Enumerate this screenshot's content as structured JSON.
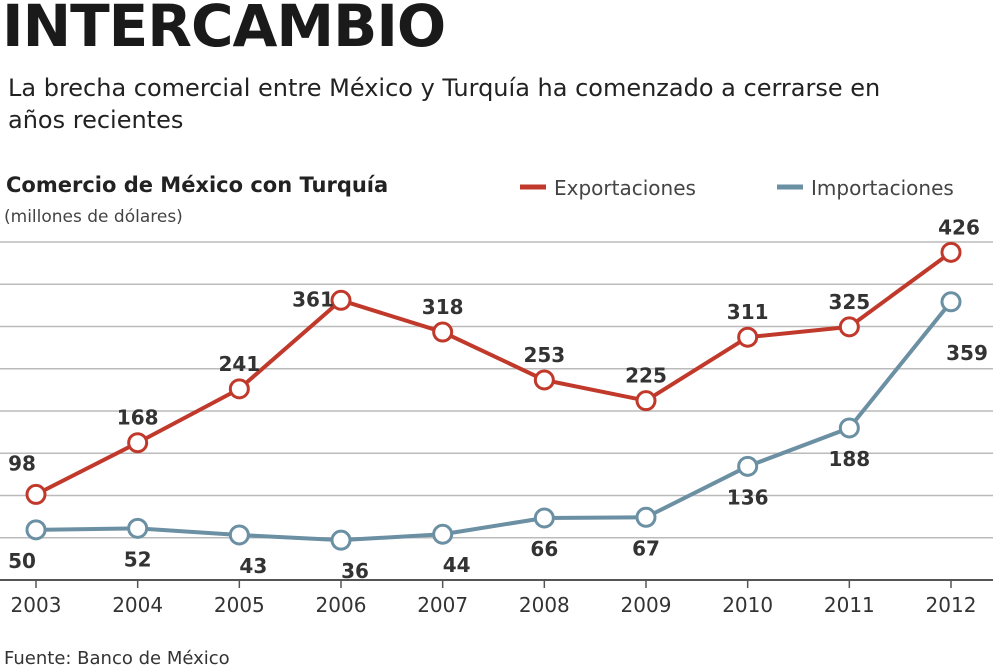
{
  "headline": "INTERCAMBIO",
  "subtitle": "La brecha comercial entre México y Turquía ha comenzado a cerrarse en años recientes",
  "source": "Fuente: Banco de México",
  "chart_data": {
    "type": "line",
    "title": "Comercio de México con Turquía",
    "ylabel": "(millones de dólares)",
    "xlabel": "",
    "categories": [
      "2003",
      "2004",
      "2005",
      "2006",
      "2007",
      "2008",
      "2009",
      "2010",
      "2011",
      "2012"
    ],
    "series": [
      {
        "name": "Exportaciones",
        "color": "#c0392b",
        "values": [
          98,
          168,
          241,
          361,
          318,
          253,
          225,
          311,
          325,
          426
        ]
      },
      {
        "name": "Importaciones",
        "color": "#6b8fa3",
        "values": [
          50,
          52,
          43,
          36,
          44,
          66,
          67,
          136,
          188,
          359
        ]
      }
    ],
    "ylim": [
      -18,
      440
    ],
    "grid": true,
    "legend": "top-right",
    "data_labels": true
  }
}
